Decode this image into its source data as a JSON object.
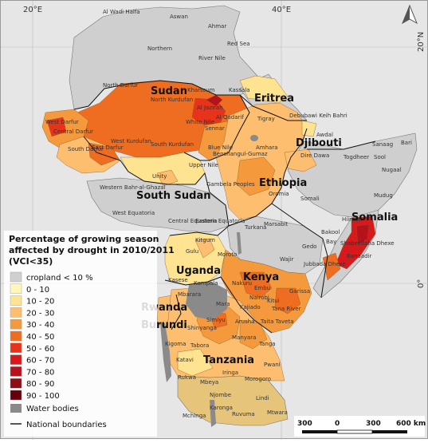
{
  "coordinates": {
    "lon": [
      "20°E",
      "40°E"
    ],
    "lat": [
      "20°N",
      "0°"
    ]
  },
  "north_arrow": {
    "icon": "north-arrow-icon"
  },
  "countries": [
    "Sudan",
    "Eritrea",
    "Djibouti",
    "Ethiopia",
    "South Sudan",
    "Somalia",
    "Uganda",
    "Kenya",
    "Rwanda",
    "Burundi",
    "Tanzania"
  ],
  "regions": [
    "Al Wadi Halfa",
    "Aswan",
    "Ahmar",
    "Northern",
    "River Nile",
    "Red Sea",
    "North Darfur",
    "North Kurdufan",
    "Khartoum",
    "Kassala",
    "Al Jazirah",
    "Al Qadarif",
    "White Nile",
    "Sennar",
    "West Darfur",
    "Central Darfur",
    "South Darfur",
    "East Darfur",
    "West Kurdufan",
    "South Kurdufan",
    "Blue Nile",
    "Tigray",
    "Debubawi Keih Bahri",
    "Awdal",
    "Amhara",
    "Benshangul-Gumaz",
    "Unity",
    "Upper Nile",
    "Gambela Peoples",
    "Oromia",
    "Dire Dawa",
    "Togdheer",
    "Sanaag",
    "Bari",
    "Sool",
    "Nugaal",
    "Mudug",
    "Somali",
    "Hiiraan",
    "Bakool",
    "Bay",
    "Shabeellaha Dhexe",
    "Banaadir",
    "Jubbada Dhexe",
    "Gedo",
    "Western Bahr-al-Ghazal",
    "West Equatoria",
    "Central Equatoria",
    "Eastern Equatoria",
    "Turkana",
    "Marsabit",
    "Wajir",
    "Gulu",
    "Kitgum",
    "Moroto",
    "Kasese",
    "Mbarara",
    "Kampala",
    "Nakuru",
    "Embu",
    "Nairobi",
    "Kitui",
    "Tana River",
    "Garissa",
    "Kajiado",
    "Mara",
    "Simiyu",
    "Arusha",
    "Taita Taveta",
    "Kigoma",
    "Shinyanga",
    "Tabora",
    "Manyara",
    "Tanga",
    "Katavi",
    "Rukwa",
    "Mbeya",
    "Iringa",
    "Morogoro",
    "Pwani",
    "Njombe",
    "Lindi",
    "Mtwara",
    "Ruvuma",
    "Mchinga",
    "Karonga"
  ],
  "legend": {
    "title_lines": [
      "Percentage of growing season",
      "affected by drought in 2010/2011",
      "(VCI<35)"
    ],
    "items": [
      {
        "label": "cropland < 10 %",
        "color": "#cfcfcf"
      },
      {
        "label": "0 - 10",
        "color": "#fff7bc"
      },
      {
        "label": "10 - 20",
        "color": "#fee391"
      },
      {
        "label": "20 - 30",
        "color": "#fdbf6f"
      },
      {
        "label": "30 - 40",
        "color": "#f59a3c"
      },
      {
        "label": "40 - 50",
        "color": "#ef6d21"
      },
      {
        "label": "50 - 60",
        "color": "#e8331a"
      },
      {
        "label": "60 - 70",
        "color": "#d7191c"
      },
      {
        "label": "70 - 80",
        "color": "#b5121b"
      },
      {
        "label": "80 - 90",
        "color": "#8f0d15"
      },
      {
        "label": "90 - 100",
        "color": "#67000d"
      }
    ],
    "water_label": "Water bodies",
    "water_color": "#8a8a8a",
    "boundary_label": "National boundaries"
  },
  "scale_bar": {
    "labels": [
      "300",
      "0",
      "300",
      "600 km"
    ]
  }
}
